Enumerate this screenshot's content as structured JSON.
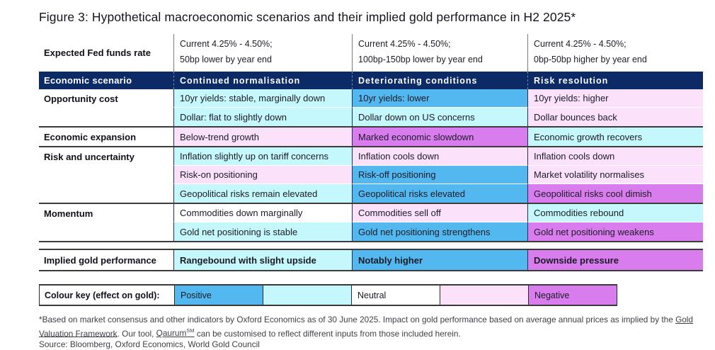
{
  "title": "Figure 3: Hypothetical macroeconomic scenarios and their implied gold performance in H2 2025*",
  "colors": {
    "navy": "#0B2A66",
    "positive_strong": "#53B8F0",
    "positive": "#C5F8FC",
    "neutral": "#FFFFFF",
    "negative": "#FCE1FA",
    "negative_strong": "#D97CEE"
  },
  "fed_row": {
    "label": "Expected Fed funds rate",
    "cells": [
      {
        "line1": "Current 4.25% - 4.50%;",
        "line2": "50bp lower by year end"
      },
      {
        "line1": "Current 4.25% - 4.50%;",
        "line2": "100bp-150bp lower by year end"
      },
      {
        "line1": "Current 4.25% - 4.50%;",
        "line2": "0bp-50bp higher by year end"
      }
    ]
  },
  "scenario_header": {
    "label": "Economic scenario",
    "columns": [
      "Continued normalisation",
      "Deteriorating conditions",
      "Risk resolution"
    ]
  },
  "groups": [
    {
      "label": "Opportunity cost",
      "rows": [
        [
          {
            "text": "10yr yields: stable, marginally down",
            "tone": "positive"
          },
          {
            "text": "10yr yields: lower",
            "tone": "positive_strong"
          },
          {
            "text": "10yr yields: higher",
            "tone": "negative"
          }
        ],
        [
          {
            "text": "Dollar: flat to slightly down",
            "tone": "positive"
          },
          {
            "text": "Dollar down on US concerns",
            "tone": "positive"
          },
          {
            "text": "Dollar bounces back",
            "tone": "negative"
          }
        ]
      ]
    },
    {
      "label": "Economic expansion",
      "rows": [
        [
          {
            "text": "Below-trend growth",
            "tone": "negative"
          },
          {
            "text": "Marked economic slowdown",
            "tone": "negative_strong"
          },
          {
            "text": "Economic growth recovers",
            "tone": "positive"
          }
        ]
      ]
    },
    {
      "label": "Risk and uncertainty",
      "rows": [
        [
          {
            "text": "Inflation slightly up on tariff concerns",
            "tone": "positive"
          },
          {
            "text": "Inflation cools down",
            "tone": "negative"
          },
          {
            "text": "Inflation cools down",
            "tone": "negative"
          }
        ],
        [
          {
            "text": "Risk-on positioning",
            "tone": "negative"
          },
          {
            "text": "Risk-off positioning",
            "tone": "positive_strong"
          },
          {
            "text": "Market volatility normalises",
            "tone": "negative"
          }
        ],
        [
          {
            "text": "Geopolitical risks remain elevated",
            "tone": "positive"
          },
          {
            "text": "Geopolitical risks elevated",
            "tone": "positive_strong"
          },
          {
            "text": "Geopolitical risks cool dimish",
            "tone": "negative_strong"
          }
        ]
      ]
    },
    {
      "label": "Momentum",
      "rows": [
        [
          {
            "text": "Commodities down marginally",
            "tone": "neutral"
          },
          {
            "text": "Commodities sell off",
            "tone": "negative"
          },
          {
            "text": "Commodities rebound",
            "tone": "positive"
          }
        ],
        [
          {
            "text": "Gold net positioning is stable",
            "tone": "positive"
          },
          {
            "text": "Gold net positioning strengthens",
            "tone": "positive_strong"
          },
          {
            "text": "Gold net positioning weakens",
            "tone": "negative_strong"
          }
        ]
      ]
    }
  ],
  "implied": {
    "label": "Implied gold performance",
    "cells": [
      {
        "text": "Rangebound with slight upside",
        "tone": "positive"
      },
      {
        "text": "Notably higher",
        "tone": "positive_strong"
      },
      {
        "text": "Downside pressure",
        "tone": "negative_strong"
      }
    ]
  },
  "colour_key": {
    "label": "Colour key (effect on gold):",
    "cells": [
      {
        "text": "Positive",
        "tone": "positive_strong"
      },
      {
        "text": "",
        "tone": "positive"
      },
      {
        "text": "Neutral",
        "tone": "neutral"
      },
      {
        "text": "",
        "tone": "negative"
      },
      {
        "text": "Negative",
        "tone": "negative_strong"
      }
    ]
  },
  "footnote": {
    "line1": "*Based on market consensus and other indicators by Oxford Economics as of 30 June 2025. Impact on gold performance based on average annual prices as implied by the",
    "link1": "Gold Valuation Framework",
    "mid": ". Our tool, ",
    "link2": "Qaurum",
    "link2_sup": "SM",
    "tail": " can be customised to reflect different inputs from those included herein."
  },
  "source": "Source: Bloomberg, Oxford Economics, World Gold Council"
}
